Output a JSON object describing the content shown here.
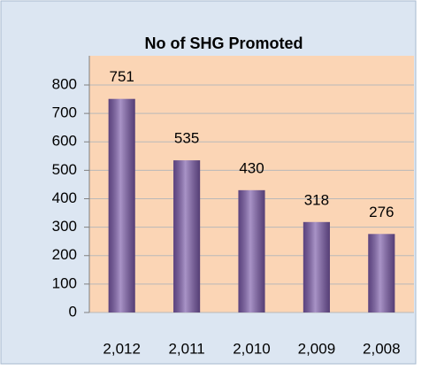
{
  "chart_data": {
    "type": "bar",
    "title": "No of SHG Promoted",
    "categories": [
      "2,012",
      "2,011",
      "2,010",
      "2,009",
      "2,008"
    ],
    "values": [
      751,
      535,
      430,
      318,
      276
    ],
    "color": "#7a59a8",
    "ylim": [
      0,
      800
    ],
    "yticks": [
      0,
      100,
      200,
      300,
      400,
      500,
      600,
      700,
      800
    ],
    "grid": true
  }
}
